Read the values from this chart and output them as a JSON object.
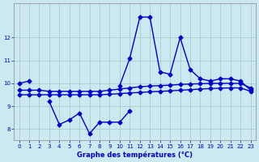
{
  "xlabel": "Graphe des températures (°C)",
  "bg_color": "#cce8f0",
  "line_color": "#0000cc",
  "grid_color": "#aacccc",
  "hours": [
    0,
    1,
    2,
    3,
    4,
    5,
    6,
    7,
    8,
    9,
    10,
    11,
    12,
    13,
    14,
    15,
    16,
    17,
    18,
    19,
    20,
    21,
    22,
    23
  ],
  "line_spike": [
    10.0,
    10.1,
    null,
    null,
    null,
    null,
    null,
    null,
    null,
    null,
    9.9,
    11.1,
    12.9,
    12.9,
    10.5,
    10.4,
    12.0,
    10.6,
    10.2,
    10.1,
    10.2,
    10.2,
    10.1,
    9.7
  ],
  "line_upper": [
    9.7,
    9.7,
    9.7,
    9.65,
    9.65,
    9.65,
    9.65,
    9.65,
    9.65,
    9.7,
    9.75,
    9.8,
    9.85,
    9.88,
    9.9,
    9.92,
    9.95,
    9.97,
    9.98,
    10.0,
    10.0,
    10.0,
    10.0,
    9.8
  ],
  "line_mid": [
    9.5,
    9.5,
    9.5,
    9.5,
    9.5,
    9.5,
    9.5,
    9.5,
    9.5,
    9.52,
    9.55,
    9.58,
    9.6,
    9.63,
    9.65,
    9.67,
    9.7,
    9.72,
    9.75,
    9.77,
    9.79,
    9.8,
    9.8,
    9.65
  ],
  "line_low": [
    null,
    null,
    null,
    9.2,
    8.2,
    8.4,
    8.7,
    7.8,
    8.3,
    8.3,
    8.3,
    8.8,
    null,
    null,
    null,
    null,
    null,
    null,
    null,
    null,
    null,
    null,
    null,
    null
  ],
  "ylim": [
    7.5,
    13.5
  ],
  "yticks": [
    8,
    9,
    10,
    11,
    12
  ],
  "xticks": [
    0,
    1,
    2,
    3,
    4,
    5,
    6,
    7,
    8,
    9,
    10,
    11,
    12,
    13,
    14,
    15,
    16,
    17,
    18,
    19,
    20,
    21,
    22,
    23
  ]
}
